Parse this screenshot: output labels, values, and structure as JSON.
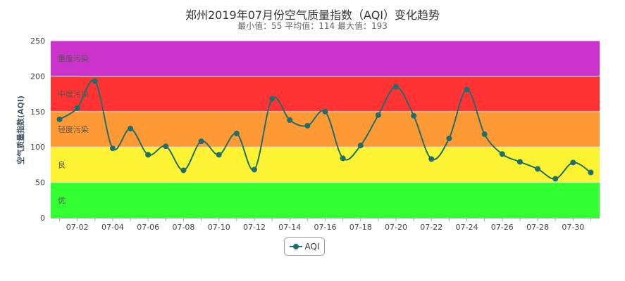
{
  "chart_data": {
    "type": "line",
    "title": "郑州2019年07月份空气质量指数（AQI）变化趋势",
    "subtitle": "最小值：55 平均值：114 最大值：193",
    "ylabel": "空气质量指数(AQI)",
    "xlabel": "",
    "ylim": [
      0,
      250
    ],
    "yticks": [
      0,
      50,
      100,
      150,
      200,
      250
    ],
    "x": [
      "07-01",
      "07-02",
      "07-03",
      "07-04",
      "07-05",
      "07-06",
      "07-07",
      "07-08",
      "07-09",
      "07-10",
      "07-11",
      "07-12",
      "07-13",
      "07-14",
      "07-15",
      "07-16",
      "07-17",
      "07-18",
      "07-19",
      "07-20",
      "07-21",
      "07-22",
      "07-23",
      "07-24",
      "07-25",
      "07-26",
      "07-27",
      "07-28",
      "07-29",
      "07-30",
      "07-31"
    ],
    "xtick_labels": [
      "07-02",
      "07-04",
      "07-06",
      "07-08",
      "07-10",
      "07-12",
      "07-14",
      "07-16",
      "07-18",
      "07-20",
      "07-22",
      "07-24",
      "07-26",
      "07-28",
      "07-30"
    ],
    "series": [
      {
        "name": "AQI",
        "color": "#1f6e6e",
        "values": [
          139,
          155,
          193,
          98,
          126,
          89,
          101,
          67,
          108,
          89,
          119,
          68,
          168,
          138,
          130,
          150,
          84,
          102,
          145,
          185,
          144,
          83,
          112,
          181,
          118,
          90,
          79,
          69,
          55,
          78,
          64
        ]
      }
    ],
    "bands": [
      {
        "label": "优",
        "from": 0,
        "to": 50,
        "color": "#33ff33"
      },
      {
        "label": "良",
        "from": 50,
        "to": 100,
        "color": "#fdf333"
      },
      {
        "label": "轻度污染",
        "from": 100,
        "to": 150,
        "color": "#ff9933"
      },
      {
        "label": "中度污染",
        "from": 150,
        "to": 200,
        "color": "#ff3333"
      },
      {
        "label": "重度污染",
        "from": 200,
        "to": 250,
        "color": "#cc33cc"
      }
    ],
    "legend_position": "bottom-center",
    "grid": false
  }
}
